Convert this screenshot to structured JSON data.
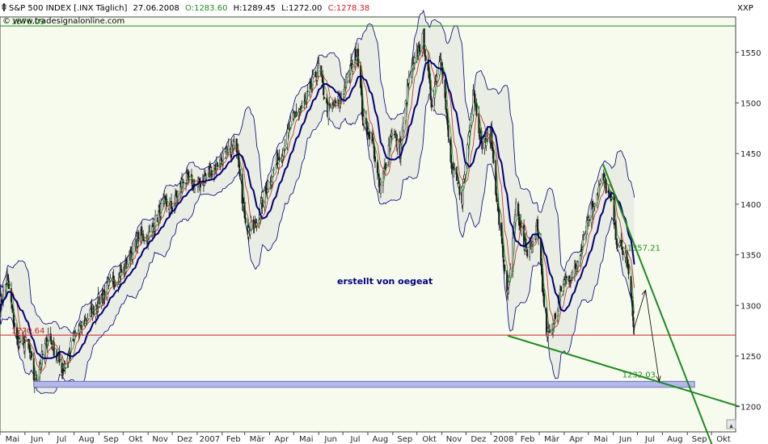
{
  "header": {
    "icon": "chart-icon",
    "symbol": "S&P 500 INDEX [.INX  Täglich]",
    "date": "27.06.2008",
    "open_label": "O:",
    "open": "1283.60",
    "high_label": "H:",
    "high": "1289.45",
    "low_label": "L:",
    "low": "1272.00",
    "close_label": "C:",
    "close": "1278.38",
    "source": "© www.tradesignalonline.com",
    "corner_label": "XXP",
    "scroll_glyph": "▴"
  },
  "colors": {
    "background": "#f7fbee",
    "candle_up": "#1a1a1a",
    "candle_down": "#1a1a1a",
    "band": "#00007a",
    "band_fill": "#e9ede3",
    "ma_slow": "#00007a",
    "ma_fast_red": "#cc2020",
    "ma_fast_green": "#1f9a1f",
    "support": "#cc2020",
    "trendline": "#1f8a1f",
    "target_zone": "#b4b8e8",
    "text_green": "#1f8a1f",
    "text_red": "#cc2020"
  },
  "chart_data": {
    "type": "candlestick",
    "ylim": [
      1175,
      1585
    ],
    "y_ticks": [
      1200,
      1250,
      1300,
      1350,
      1400,
      1450,
      1500,
      1550
    ],
    "x_start": "2006-05-01",
    "x_end": "2008-10-31",
    "month_ticks": [
      {
        "date": "2006-05-01",
        "label": "Mai"
      },
      {
        "date": "2006-06-01",
        "label": "Jun"
      },
      {
        "date": "2006-07-01",
        "label": "Jul"
      },
      {
        "date": "2006-08-01",
        "label": "Aug"
      },
      {
        "date": "2006-09-01",
        "label": "Sep"
      },
      {
        "date": "2006-10-01",
        "label": "Okt"
      },
      {
        "date": "2006-11-01",
        "label": "Nov"
      },
      {
        "date": "2006-12-01",
        "label": "Dez"
      },
      {
        "date": "2007-01-01",
        "label": "2007"
      },
      {
        "date": "2007-02-01",
        "label": "Feb"
      },
      {
        "date": "2007-03-01",
        "label": "Mär"
      },
      {
        "date": "2007-04-01",
        "label": "Apr"
      },
      {
        "date": "2007-05-01",
        "label": "Mai"
      },
      {
        "date": "2007-06-01",
        "label": "Jun"
      },
      {
        "date": "2007-07-01",
        "label": "Jul"
      },
      {
        "date": "2007-08-01",
        "label": "Aug"
      },
      {
        "date": "2007-09-01",
        "label": "Sep"
      },
      {
        "date": "2007-10-01",
        "label": "Okt"
      },
      {
        "date": "2007-11-01",
        "label": "Nov"
      },
      {
        "date": "2007-12-01",
        "label": "Dez"
      },
      {
        "date": "2008-01-01",
        "label": "2008"
      },
      {
        "date": "2008-02-01",
        "label": "Feb"
      },
      {
        "date": "2008-03-01",
        "label": "Mär"
      },
      {
        "date": "2008-04-01",
        "label": "Apr"
      },
      {
        "date": "2008-05-01",
        "label": "Mai"
      },
      {
        "date": "2008-06-01",
        "label": "Jun"
      },
      {
        "date": "2008-07-01",
        "label": "Jul"
      },
      {
        "date": "2008-08-01",
        "label": "Aug"
      },
      {
        "date": "2008-09-01",
        "label": "Sep"
      },
      {
        "date": "2008-10-01",
        "label": "Okt"
      }
    ],
    "price_path": [
      {
        "date": "2006-05-01",
        "close": 1300
      },
      {
        "date": "2006-05-10",
        "close": 1326
      },
      {
        "date": "2006-05-22",
        "close": 1265
      },
      {
        "date": "2006-06-05",
        "close": 1262
      },
      {
        "date": "2006-06-13",
        "close": 1223
      },
      {
        "date": "2006-06-30",
        "close": 1270
      },
      {
        "date": "2006-07-18",
        "close": 1236
      },
      {
        "date": "2006-08-02",
        "close": 1270
      },
      {
        "date": "2006-08-15",
        "close": 1285
      },
      {
        "date": "2006-09-01",
        "close": 1305
      },
      {
        "date": "2006-09-15",
        "close": 1321
      },
      {
        "date": "2006-10-02",
        "close": 1335
      },
      {
        "date": "2006-10-20",
        "close": 1368
      },
      {
        "date": "2006-11-01",
        "close": 1367
      },
      {
        "date": "2006-11-20",
        "close": 1400
      },
      {
        "date": "2006-12-01",
        "close": 1397
      },
      {
        "date": "2006-12-15",
        "close": 1425
      },
      {
        "date": "2007-01-01",
        "close": 1418
      },
      {
        "date": "2007-01-15",
        "close": 1430
      },
      {
        "date": "2007-02-01",
        "close": 1445
      },
      {
        "date": "2007-02-20",
        "close": 1459
      },
      {
        "date": "2007-02-27",
        "close": 1399
      },
      {
        "date": "2007-03-05",
        "close": 1374
      },
      {
        "date": "2007-03-14",
        "close": 1377
      },
      {
        "date": "2007-03-30",
        "close": 1421
      },
      {
        "date": "2007-04-15",
        "close": 1450
      },
      {
        "date": "2007-05-01",
        "close": 1486
      },
      {
        "date": "2007-05-15",
        "close": 1500
      },
      {
        "date": "2007-06-01",
        "close": 1536
      },
      {
        "date": "2007-06-12",
        "close": 1492
      },
      {
        "date": "2007-06-28",
        "close": 1503
      },
      {
        "date": "2007-07-10",
        "close": 1534
      },
      {
        "date": "2007-07-19",
        "close": 1553
      },
      {
        "date": "2007-07-26",
        "close": 1482
      },
      {
        "date": "2007-08-06",
        "close": 1467
      },
      {
        "date": "2007-08-16",
        "close": 1411
      },
      {
        "date": "2007-08-31",
        "close": 1474
      },
      {
        "date": "2007-09-10",
        "close": 1451
      },
      {
        "date": "2007-09-20",
        "close": 1518
      },
      {
        "date": "2007-10-01",
        "close": 1547
      },
      {
        "date": "2007-10-09",
        "close": 1565
      },
      {
        "date": "2007-10-19",
        "close": 1500
      },
      {
        "date": "2007-10-31",
        "close": 1549
      },
      {
        "date": "2007-11-12",
        "close": 1439
      },
      {
        "date": "2007-11-26",
        "close": 1407
      },
      {
        "date": "2007-12-10",
        "close": 1515
      },
      {
        "date": "2007-12-20",
        "close": 1460
      },
      {
        "date": "2008-01-01",
        "close": 1468
      },
      {
        "date": "2008-01-10",
        "close": 1390
      },
      {
        "date": "2008-01-22",
        "close": 1310
      },
      {
        "date": "2008-02-01",
        "close": 1395
      },
      {
        "date": "2008-02-15",
        "close": 1349
      },
      {
        "date": "2008-02-27",
        "close": 1380
      },
      {
        "date": "2008-03-10",
        "close": 1273
      },
      {
        "date": "2008-03-17",
        "close": 1276
      },
      {
        "date": "2008-03-31",
        "close": 1323
      },
      {
        "date": "2008-04-15",
        "close": 1334
      },
      {
        "date": "2008-04-30",
        "close": 1385
      },
      {
        "date": "2008-05-19",
        "close": 1426
      },
      {
        "date": "2008-05-30",
        "close": 1400
      },
      {
        "date": "2008-06-06",
        "close": 1360
      },
      {
        "date": "2008-06-17",
        "close": 1350
      },
      {
        "date": "2008-06-27",
        "close": 1278
      }
    ],
    "horizontal_lines": [
      {
        "value": 1576.09,
        "label": "1576.09"
      },
      {
        "value": 1270.64,
        "label": "1270.64"
      }
    ],
    "target_zone": {
      "from": "2006-06-12",
      "to": "2008-09-10",
      "low": 1219,
      "high": 1225
    },
    "trendlines": [
      {
        "from": {
          "date": "2008-05-19",
          "value": 1440
        },
        "to": {
          "date": "2008-10-10",
          "value": 1145
        }
      },
      {
        "from": {
          "date": "2008-01-22",
          "value": 1270
        },
        "to": {
          "date": "2008-11-05",
          "value": 1200
        }
      }
    ],
    "annotations": [
      {
        "date": "2008-06-18",
        "value": 1357.21,
        "text": "1357.21"
      },
      {
        "date": "2008-06-12",
        "value": 1232.03,
        "text": "1232.03"
      }
    ],
    "projection_path": [
      {
        "date": "2008-06-27",
        "value": 1278
      },
      {
        "date": "2008-07-11",
        "value": 1315
      },
      {
        "date": "2008-07-28",
        "value": 1225
      }
    ],
    "credit_text": "erstellt von oegeat"
  }
}
